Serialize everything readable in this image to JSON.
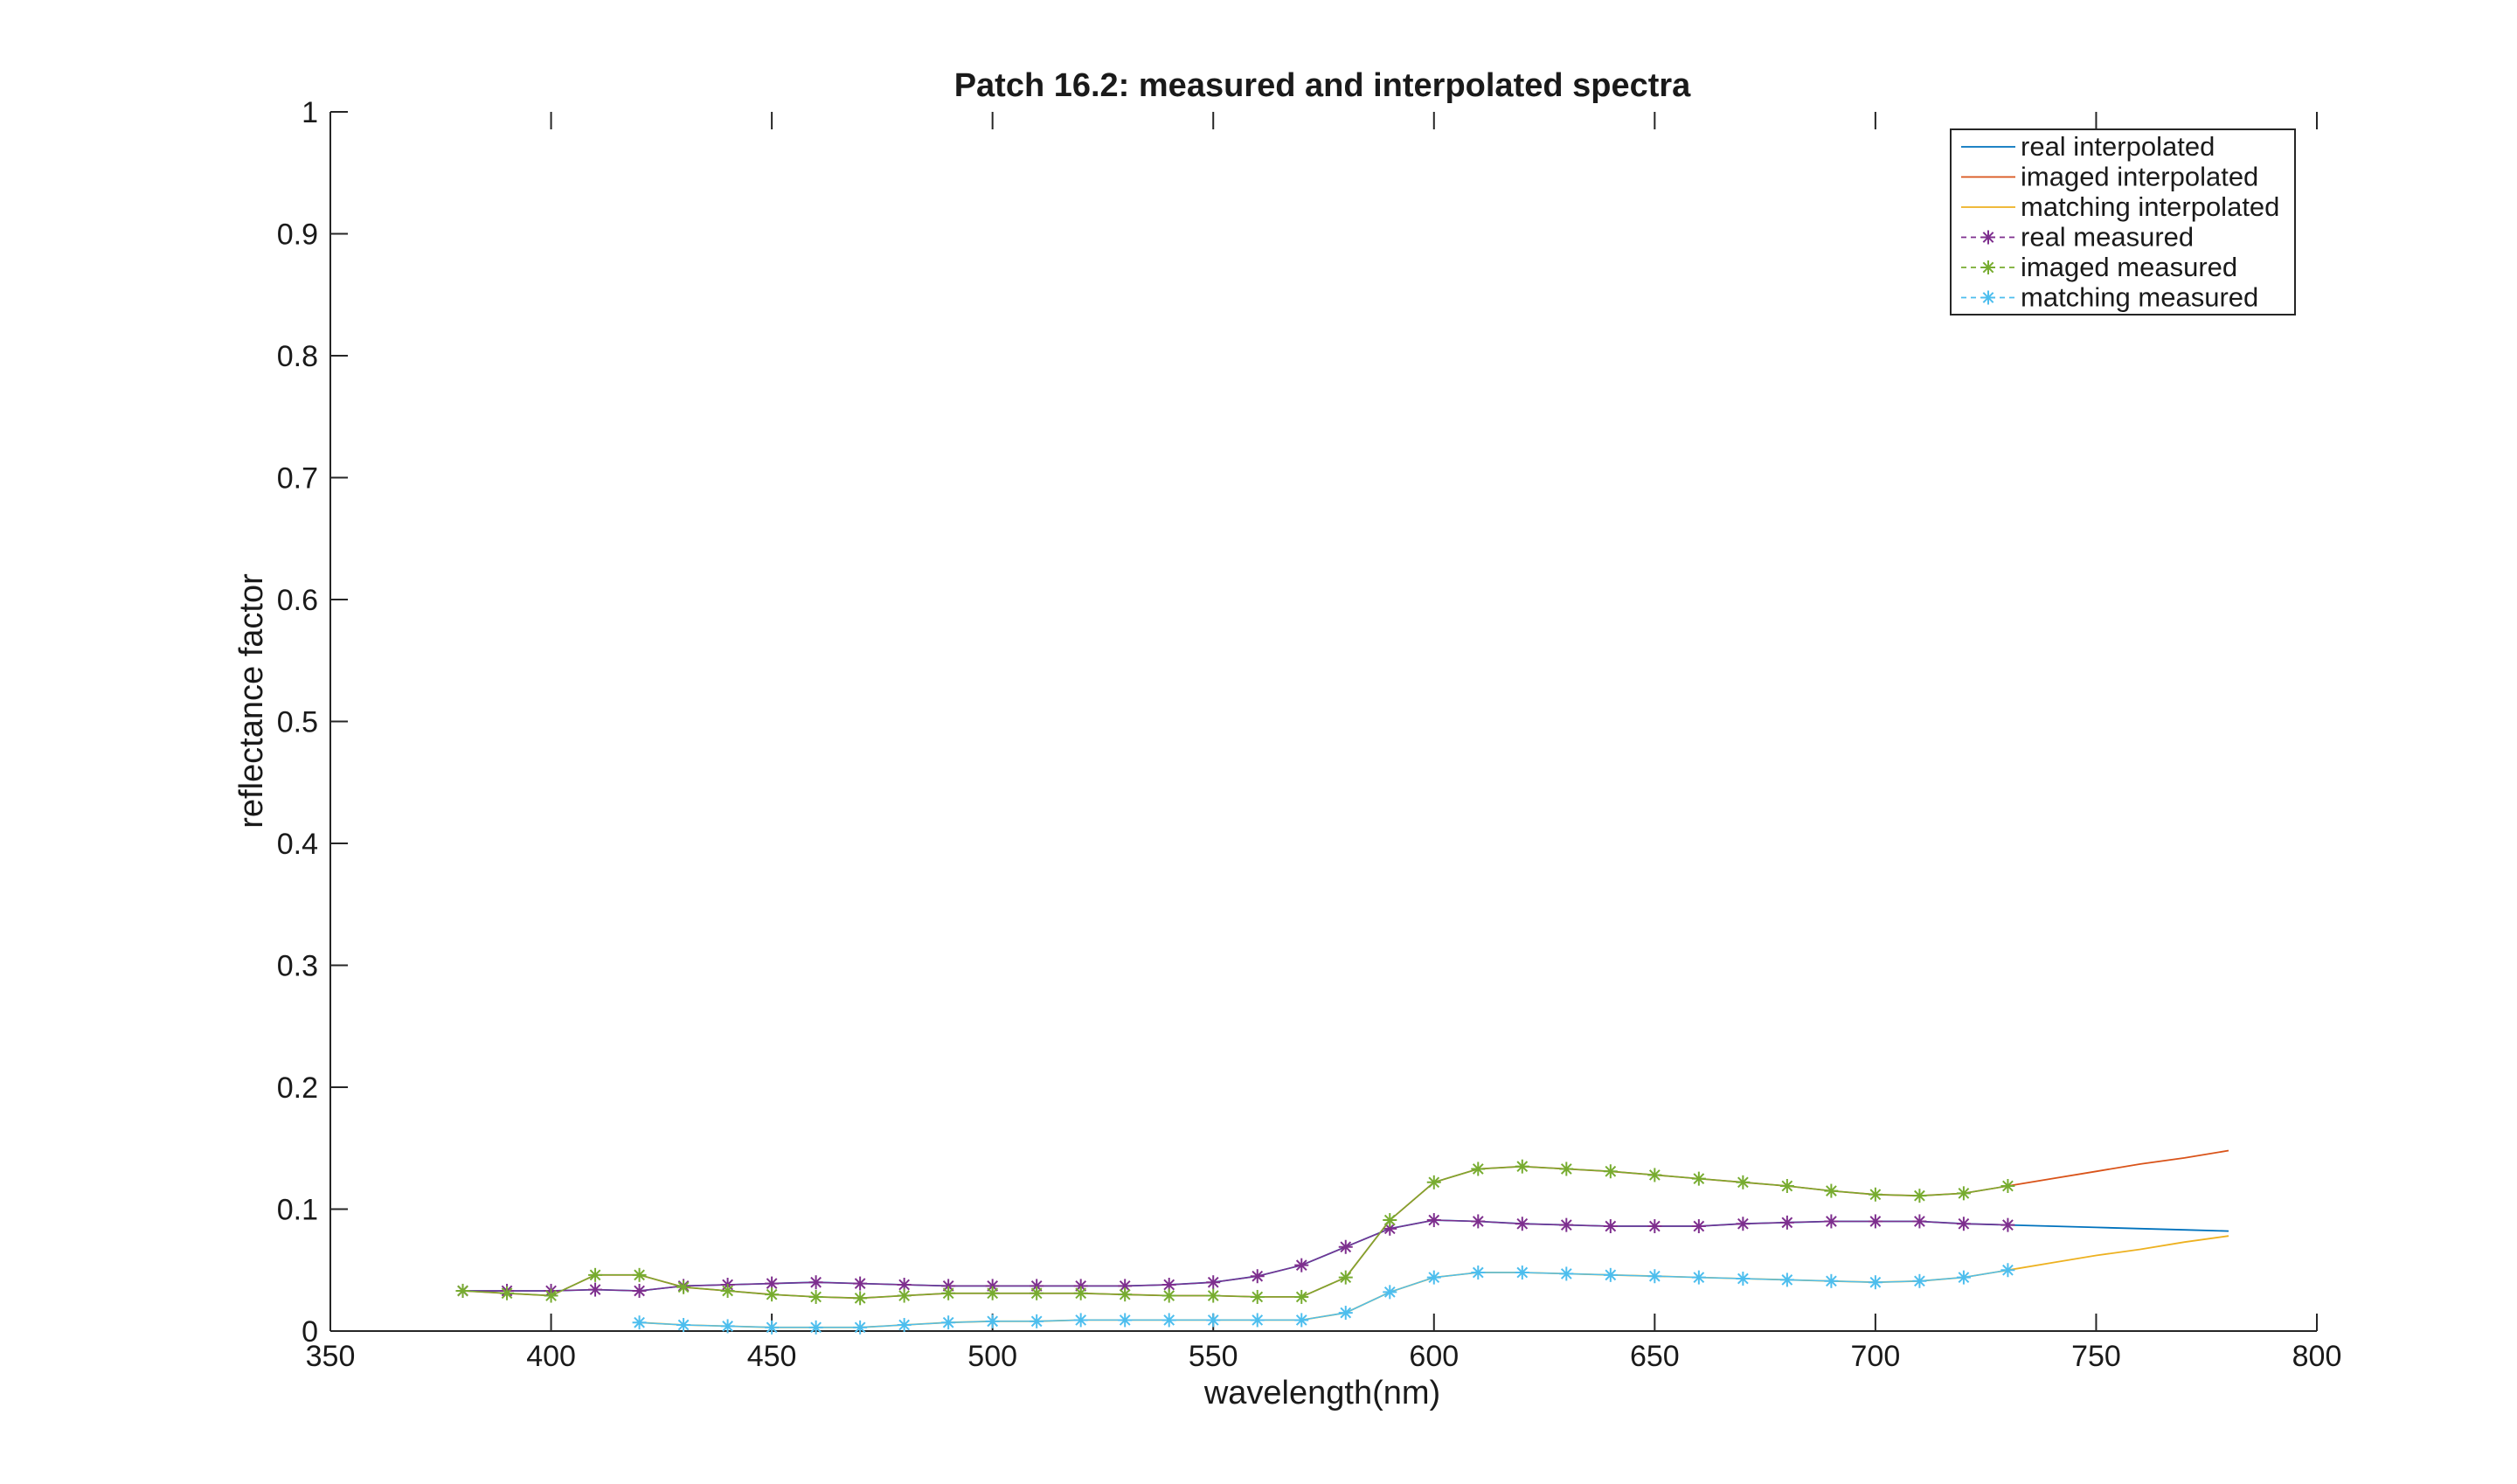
{
  "chart_data": {
    "type": "line",
    "title": "Patch 16.2: measured and interpolated spectra",
    "xlabel": "wavelength(nm)",
    "ylabel": "reflectance factor",
    "xlim": [
      350,
      800
    ],
    "ylim": [
      0,
      1
    ],
    "xticks": [
      350,
      400,
      450,
      500,
      550,
      600,
      650,
      700,
      750,
      800
    ],
    "yticks": [
      0,
      0.1,
      0.2,
      0.3,
      0.4,
      0.5,
      0.6,
      0.7,
      0.8,
      0.9,
      1
    ],
    "xtick_labels": [
      "350",
      "400",
      "450",
      "500",
      "550",
      "600",
      "650",
      "700",
      "750",
      "800"
    ],
    "ytick_labels": [
      "0",
      "0.1",
      "0.2",
      "0.3",
      "0.4",
      "0.5",
      "0.6",
      "0.7",
      "0.8",
      "0.9",
      "1"
    ],
    "grid": false,
    "legend_position": "top-right",
    "series": [
      {
        "name": "real interpolated",
        "color": "#0072BD",
        "marker": "none",
        "x": [
          380,
          390,
          400,
          410,
          420,
          430,
          440,
          450,
          460,
          470,
          480,
          490,
          500,
          510,
          520,
          530,
          540,
          550,
          560,
          570,
          580,
          590,
          600,
          610,
          620,
          630,
          640,
          650,
          660,
          670,
          680,
          690,
          700,
          710,
          720,
          730,
          740,
          750,
          760,
          770,
          780
        ],
        "y": [
          0.033,
          0.033,
          0.033,
          0.034,
          0.033,
          0.037,
          0.038,
          0.039,
          0.04,
          0.039,
          0.038,
          0.037,
          0.037,
          0.037,
          0.037,
          0.037,
          0.038,
          0.04,
          0.045,
          0.054,
          0.069,
          0.084,
          0.091,
          0.09,
          0.088,
          0.087,
          0.086,
          0.086,
          0.086,
          0.088,
          0.089,
          0.09,
          0.09,
          0.09,
          0.088,
          0.087,
          0.086,
          0.085,
          0.084,
          0.083,
          0.082
        ]
      },
      {
        "name": "imaged interpolated",
        "color": "#D95319",
        "marker": "none",
        "x": [
          380,
          390,
          400,
          410,
          420,
          430,
          440,
          450,
          460,
          470,
          480,
          490,
          500,
          510,
          520,
          530,
          540,
          550,
          560,
          570,
          580,
          590,
          600,
          610,
          620,
          630,
          640,
          650,
          660,
          670,
          680,
          690,
          700,
          710,
          720,
          730,
          740,
          750,
          760,
          770,
          780
        ],
        "y": [
          0.033,
          0.031,
          0.029,
          0.046,
          0.046,
          0.036,
          0.033,
          0.03,
          0.028,
          0.027,
          0.029,
          0.031,
          0.031,
          0.031,
          0.031,
          0.03,
          0.029,
          0.029,
          0.028,
          0.028,
          0.044,
          0.091,
          0.122,
          0.133,
          0.135,
          0.133,
          0.131,
          0.128,
          0.125,
          0.122,
          0.119,
          0.115,
          0.112,
          0.111,
          0.113,
          0.119,
          0.125,
          0.131,
          0.137,
          0.142,
          0.148
        ]
      },
      {
        "name": "matching interpolated",
        "color": "#EDB120",
        "marker": "none",
        "x": [
          420,
          430,
          440,
          450,
          460,
          470,
          480,
          490,
          500,
          510,
          520,
          530,
          540,
          550,
          560,
          570,
          580,
          590,
          600,
          610,
          620,
          630,
          640,
          650,
          660,
          670,
          680,
          690,
          700,
          710,
          720,
          730,
          740,
          750,
          760,
          770,
          780
        ],
        "y": [
          0.007,
          0.005,
          0.004,
          0.003,
          0.003,
          0.003,
          0.005,
          0.007,
          0.008,
          0.008,
          0.009,
          0.009,
          0.009,
          0.009,
          0.009,
          0.009,
          0.015,
          0.032,
          0.044,
          0.048,
          0.048,
          0.047,
          0.046,
          0.045,
          0.044,
          0.043,
          0.042,
          0.041,
          0.04,
          0.041,
          0.044,
          0.05,
          0.056,
          0.062,
          0.067,
          0.073,
          0.078
        ]
      },
      {
        "name": "real measured",
        "color": "#7E2F8E",
        "marker": "*",
        "x": [
          380,
          390,
          400,
          410,
          420,
          430,
          440,
          450,
          460,
          470,
          480,
          490,
          500,
          510,
          520,
          530,
          540,
          550,
          560,
          570,
          580,
          590,
          600,
          610,
          620,
          630,
          640,
          650,
          660,
          670,
          680,
          690,
          700,
          710,
          720,
          730
        ],
        "y": [
          0.033,
          0.033,
          0.033,
          0.034,
          0.033,
          0.037,
          0.038,
          0.039,
          0.04,
          0.039,
          0.038,
          0.037,
          0.037,
          0.037,
          0.037,
          0.037,
          0.038,
          0.04,
          0.045,
          0.054,
          0.069,
          0.084,
          0.091,
          0.09,
          0.088,
          0.087,
          0.086,
          0.086,
          0.086,
          0.088,
          0.089,
          0.09,
          0.09,
          0.09,
          0.088,
          0.087
        ]
      },
      {
        "name": "imaged measured",
        "color": "#77AC30",
        "marker": "*",
        "x": [
          380,
          390,
          400,
          410,
          420,
          430,
          440,
          450,
          460,
          470,
          480,
          490,
          500,
          510,
          520,
          530,
          540,
          550,
          560,
          570,
          580,
          590,
          600,
          610,
          620,
          630,
          640,
          650,
          660,
          670,
          680,
          690,
          700,
          710,
          720,
          730
        ],
        "y": [
          0.033,
          0.031,
          0.029,
          0.046,
          0.046,
          0.036,
          0.033,
          0.03,
          0.028,
          0.027,
          0.029,
          0.031,
          0.031,
          0.031,
          0.031,
          0.03,
          0.029,
          0.029,
          0.028,
          0.028,
          0.044,
          0.091,
          0.122,
          0.133,
          0.135,
          0.133,
          0.131,
          0.128,
          0.125,
          0.122,
          0.119,
          0.115,
          0.112,
          0.111,
          0.113,
          0.119
        ]
      },
      {
        "name": "matching measured",
        "color": "#4DBEEE",
        "marker": "*",
        "x": [
          420,
          430,
          440,
          450,
          460,
          470,
          480,
          490,
          500,
          510,
          520,
          530,
          540,
          550,
          560,
          570,
          580,
          590,
          600,
          610,
          620,
          630,
          640,
          650,
          660,
          670,
          680,
          690,
          700,
          710,
          720,
          730
        ],
        "y": [
          0.007,
          0.005,
          0.004,
          0.003,
          0.003,
          0.003,
          0.005,
          0.007,
          0.008,
          0.008,
          0.009,
          0.009,
          0.009,
          0.009,
          0.009,
          0.009,
          0.015,
          0.032,
          0.044,
          0.048,
          0.048,
          0.047,
          0.046,
          0.045,
          0.044,
          0.043,
          0.042,
          0.041,
          0.04,
          0.041,
          0.044,
          0.05
        ]
      }
    ]
  }
}
